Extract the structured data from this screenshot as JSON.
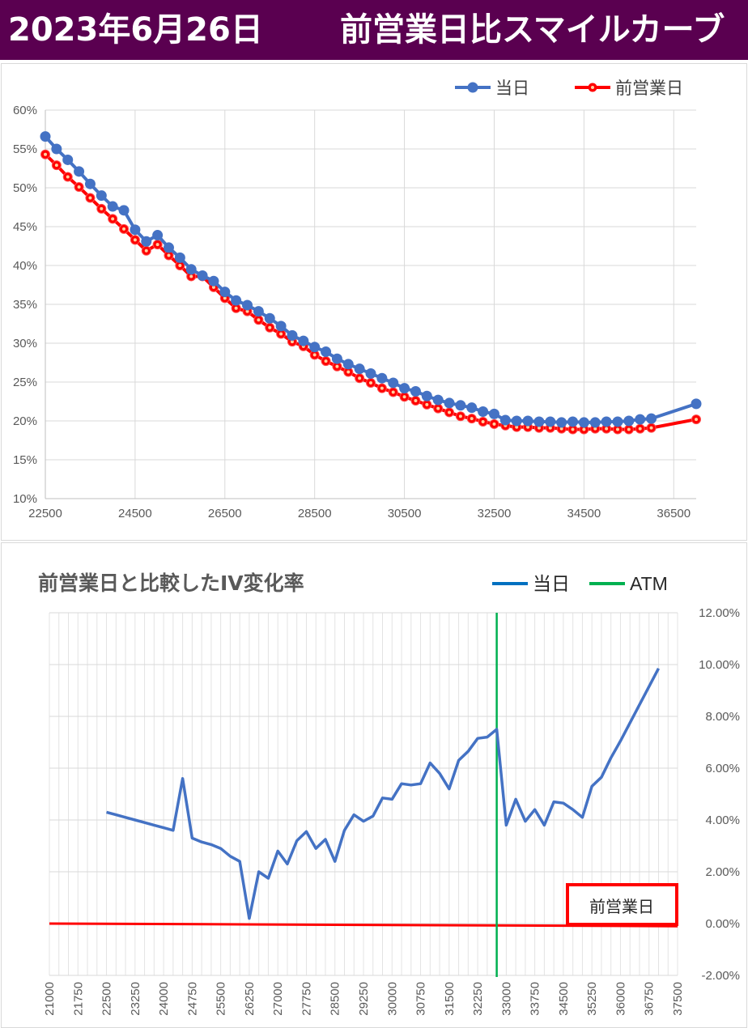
{
  "header": {
    "date": "2023年6月26日",
    "title": "前営業日比スマイルカーブ"
  },
  "chart_data": [
    {
      "type": "line",
      "title": "",
      "xlabel": "",
      "ylabel": "",
      "xlim": [
        22500,
        37000
      ],
      "ylim": [
        10,
        60
      ],
      "xticks": [
        "22500",
        "24500",
        "26500",
        "28500",
        "30500",
        "32500",
        "34500",
        "36500"
      ],
      "yticks": [
        "10%",
        "15%",
        "20%",
        "25%",
        "30%",
        "35%",
        "40%",
        "45%",
        "50%",
        "55%",
        "60%"
      ],
      "grid": true,
      "legend_position": "top-right",
      "colors": {
        "today": "#4472c4",
        "prev": "#ff0000"
      },
      "x": [
        22500,
        22750,
        23000,
        23250,
        23500,
        23750,
        24000,
        24250,
        24500,
        24750,
        25000,
        25250,
        25500,
        25750,
        26000,
        26250,
        26500,
        26750,
        27000,
        27250,
        27500,
        27750,
        28000,
        28250,
        28500,
        28750,
        29000,
        29250,
        29500,
        29750,
        30000,
        30250,
        30500,
        30750,
        31000,
        31250,
        31500,
        31750,
        32000,
        32250,
        32500,
        32750,
        33000,
        33250,
        33500,
        33750,
        34000,
        34250,
        34500,
        34750,
        35000,
        35250,
        35500,
        35750,
        36000,
        37000
      ],
      "series": [
        {
          "name": "当日",
          "values": [
            56.6,
            55.0,
            53.6,
            52.1,
            50.5,
            49.0,
            47.6,
            47.1,
            44.6,
            43.1,
            43.9,
            42.3,
            41.0,
            39.5,
            38.7,
            38.0,
            36.6,
            35.5,
            34.9,
            34.1,
            33.2,
            32.2,
            31.0,
            30.3,
            29.5,
            28.9,
            28.0,
            27.3,
            26.7,
            26.1,
            25.5,
            24.9,
            24.2,
            23.8,
            23.2,
            22.7,
            22.3,
            22.0,
            21.7,
            21.2,
            20.9,
            20.1,
            20.0,
            20.0,
            19.9,
            19.9,
            19.8,
            19.9,
            19.8,
            19.8,
            19.9,
            19.9,
            20.0,
            20.2,
            20.3,
            22.2
          ]
        },
        {
          "name": "前営業日",
          "values": [
            54.3,
            52.9,
            51.4,
            50.1,
            48.7,
            47.3,
            46.0,
            44.7,
            43.3,
            41.9,
            42.7,
            41.3,
            40.0,
            38.6,
            38.6,
            37.2,
            35.8,
            34.5,
            34.1,
            33.0,
            32.0,
            31.2,
            30.2,
            29.6,
            28.5,
            27.7,
            27.0,
            26.3,
            25.5,
            24.9,
            24.2,
            23.7,
            23.1,
            22.6,
            22.1,
            21.6,
            21.1,
            20.6,
            20.3,
            19.9,
            19.6,
            19.4,
            19.2,
            19.2,
            19.1,
            19.1,
            19.0,
            18.9,
            18.9,
            19.0,
            19.0,
            18.9,
            18.9,
            19.0,
            19.1,
            20.2
          ]
        }
      ]
    },
    {
      "type": "line",
      "title": "前営業日と比較したIV変化率",
      "xlabel": "",
      "ylabel": "",
      "xlim": [
        21000,
        37500
      ],
      "ylim": [
        -2,
        12
      ],
      "xticks": [
        "21000",
        "21750",
        "22500",
        "23250",
        "24000",
        "24750",
        "25500",
        "26250",
        "27000",
        "27750",
        "28500",
        "29250",
        "30000",
        "30750",
        "31500",
        "32250",
        "33000",
        "33750",
        "34500",
        "35250",
        "36000",
        "36750",
        "37500"
      ],
      "yticks": [
        "-2.00%",
        "0.00%",
        "2.00%",
        "4.00%",
        "6.00%",
        "8.00%",
        "10.00%",
        "12.00%"
      ],
      "atm": 32750,
      "annotation": "前営業日",
      "colors": {
        "today": "#4472c4",
        "prev": "#ff0000",
        "atm": "#00b050"
      },
      "legend": [
        {
          "name": "当日",
          "color": "#0070c0"
        },
        {
          "name": "ATM",
          "color": "#00b050"
        }
      ],
      "series": [
        {
          "name": "当日",
          "x": [
            22500,
            22750,
            23000,
            23250,
            23500,
            23750,
            24000,
            24250,
            24500,
            24750,
            25000,
            25250,
            25500,
            25750,
            26000,
            26250,
            26500,
            26750,
            27000,
            27250,
            27500,
            27750,
            28000,
            28250,
            28500,
            28750,
            29000,
            29250,
            29500,
            29750,
            30000,
            30250,
            30500,
            30750,
            31000,
            31250,
            31500,
            31750,
            32000,
            32250,
            32500,
            32750,
            33000,
            33250,
            33500,
            33750,
            34000,
            34250,
            34500,
            34750,
            35000,
            35250,
            35500,
            35750,
            36000,
            37000
          ],
          "values": [
            4.3,
            4.2,
            4.1,
            4.0,
            3.9,
            3.8,
            3.7,
            3.6,
            5.6,
            3.3,
            3.15,
            3.05,
            2.9,
            2.6,
            2.4,
            0.2,
            2.0,
            1.75,
            2.8,
            2.3,
            3.2,
            3.55,
            2.9,
            3.25,
            2.4,
            3.6,
            4.2,
            3.95,
            4.15,
            4.85,
            4.8,
            5.4,
            5.35,
            5.4,
            6.2,
            5.8,
            5.2,
            6.3,
            6.65,
            7.15,
            7.2,
            7.5,
            3.8,
            4.8,
            3.95,
            4.4,
            3.8,
            4.7,
            4.65,
            4.4,
            4.1,
            5.3,
            5.65,
            6.4,
            7.05,
            9.85
          ]
        },
        {
          "name": "前営業日",
          "x": [
            21000,
            37500
          ],
          "values": [
            0.0,
            -0.1
          ]
        }
      ]
    }
  ]
}
